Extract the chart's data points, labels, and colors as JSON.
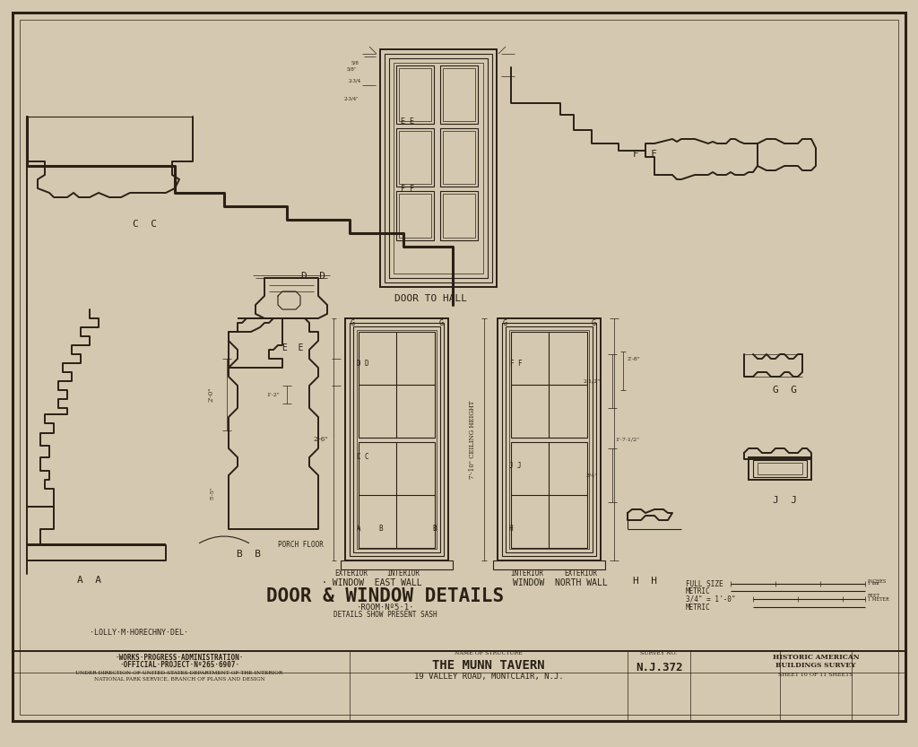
{
  "bg_color": "#d4c9b0",
  "line_color": "#2a2015",
  "title_main": "DOOR & WINDOW DETAILS",
  "title_sub1": "·ROOM·Nº5·1·",
  "title_sub2": "DETAILS SHOW PRESENT SASH",
  "label_left": "·LOLLY·M·HORECHNY·DEL·",
  "label_aa": "A  A",
  "label_bb": "B  B",
  "label_cc": "C  C",
  "label_dd": "D  D",
  "label_ee": "E  E",
  "label_ff": "F  F",
  "label_gg": "G  G",
  "label_hh": "H  H",
  "label_jj": "J  J",
  "label_door": "DOOR TO HALL",
  "label_window_east": "· WINDOW  EAST WALL",
  "label_window_north": "WINDOW  NORTH WALL",
  "label_ext1": "EXTERIOR",
  "label_int1": "INTERIOR",
  "label_int2": "INTERIOR",
  "label_ext2": "EXTERIOR",
  "struct_name": "THE MUNN TAVERN",
  "struct_addr": "19 VALLEY ROAD, MONTCLAIR, N.J.",
  "survey_no": "N.J.372",
  "sheet_info": "SHEET 10 OF 11 SHEETS",
  "agency1": "·WORKS·PROGRESS·ADMINISTRATION·",
  "agency2": "·OFFICIAL·PROJECT·Nº265·6907·",
  "agency3": "UNDER DIRECTION OF UNITED STATES DEPARTMENT OF THE INTERIOR",
  "agency4": "NATIONAL PARK SERVICE, BRANCH OF PLANS AND DESIGN",
  "full_size": "FULL SIZE",
  "metric1": "METRIC",
  "scale_34": "3/4\" = 1'-0\"",
  "metric2": "METRIC",
  "name_of_structure": "NAME OF STRUCTURE",
  "survey_no_label": "SURVEY NO.",
  "habs_line1": "HISTORIC AMERICAN",
  "habs_line2": "BUILDINGS SURVEY",
  "drawn_by": "LOLLY M HORECHNY"
}
